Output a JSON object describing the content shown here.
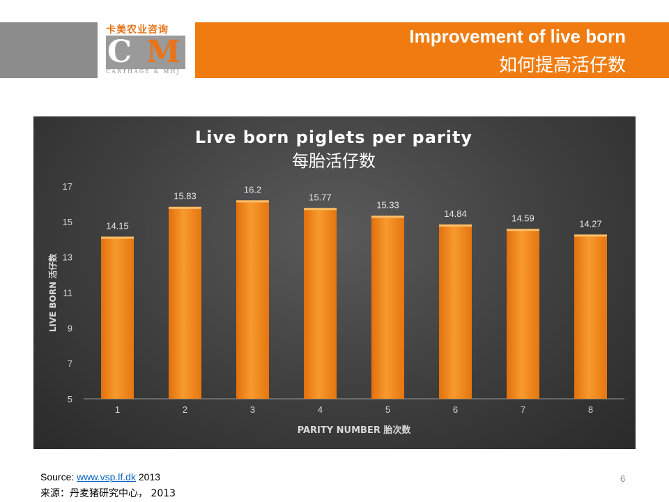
{
  "header": {
    "logo_cn": "卡美农业咨询",
    "logo_c": "C",
    "logo_m": "M",
    "logo_en": "CARTHAGE & MHJ",
    "title_en": "Improvement of live born",
    "title_cn": "如何提高活仔数"
  },
  "colors": {
    "accent": "#f07c11",
    "grey": "#8c8c8c",
    "bar": "#f28c1e",
    "panel": "#3e3e3e"
  },
  "chart_data": {
    "type": "bar",
    "title": "Live born piglets per parity",
    "subtitle": "每胎活仔数",
    "xlabel": "PARITY NUMBER 胎次数",
    "ylabel": "LIVE BORN 活仔数",
    "categories": [
      "1",
      "2",
      "3",
      "4",
      "5",
      "6",
      "7",
      "8"
    ],
    "values": [
      14.15,
      15.83,
      16.2,
      15.77,
      15.33,
      14.84,
      14.59,
      14.27
    ],
    "data_labels": [
      "14.15",
      "15.83",
      "16.2",
      "15.77",
      "15.33",
      "14.84",
      "14.59",
      "14.27"
    ],
    "y_ticks": [
      "5",
      "7",
      "9",
      "11",
      "13",
      "15",
      "17"
    ],
    "ylim": [
      5,
      17
    ],
    "grid": false,
    "legend": "none"
  },
  "footer": {
    "source_prefix": "Source: ",
    "source_link": "www.vsp.lf.dk",
    "source_year": " 2013",
    "source_cn": "来源：丹麦猪研究中心， 2013",
    "page_number": "6"
  }
}
